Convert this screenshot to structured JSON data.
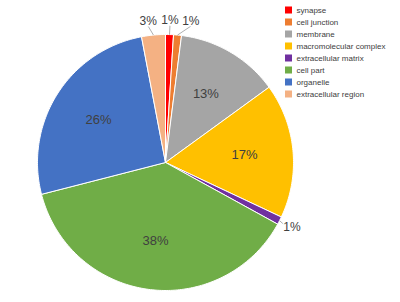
{
  "chart_data": {
    "type": "pie",
    "categories": [
      "synapse",
      "cell junction",
      "membrane",
      "macromolecular complex",
      "extracellular matrix",
      "cell part",
      "organelle",
      "extracellular region"
    ],
    "values": [
      1,
      1,
      13,
      17,
      1,
      38,
      26,
      3
    ],
    "value_labels": [
      "1%",
      "1%",
      "13%",
      "17%",
      "1%",
      "38%",
      "26%",
      "3%"
    ],
    "colors": [
      "#ff0000",
      "#ed7d31",
      "#a5a5a5",
      "#ffc000",
      "#7030a0",
      "#70ad47",
      "#4472c4",
      "#f4b183"
    ],
    "data_labels": true,
    "legend": "right"
  }
}
